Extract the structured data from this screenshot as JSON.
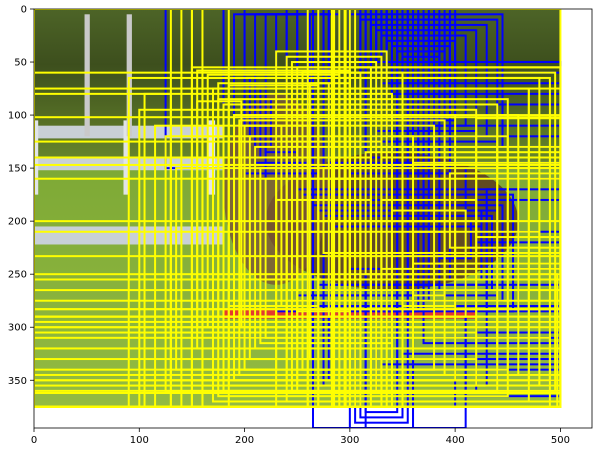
{
  "chart_data": {
    "type": "image-with-boxes",
    "xlim": [
      0,
      530
    ],
    "ylim": [
      395,
      0
    ],
    "image_extent": {
      "x": [
        0,
        500
      ],
      "y": [
        375,
        0
      ]
    },
    "x_ticks": [
      0,
      100,
      200,
      300,
      400,
      500
    ],
    "y_ticks": [
      0,
      50,
      100,
      150,
      200,
      250,
      300,
      350
    ],
    "x_tick_labels": [
      "0",
      "100",
      "200",
      "300",
      "400",
      "500"
    ],
    "y_tick_labels": [
      "0",
      "50",
      "100",
      "150",
      "200",
      "250",
      "300",
      "350"
    ],
    "colors": {
      "yellow": "#ffff00",
      "blue": "#0000ff",
      "grass_light": "#8fb53c",
      "grass_dark": "#5d7d25",
      "trees": "#3d4f1d",
      "fence": "#c8d0d6",
      "horse": "#5a3a1e",
      "jump_pole": "#e53a2e"
    },
    "boxes": {
      "yellow": [
        [
          0,
          0,
          500,
          375
        ],
        [
          0,
          75,
          500,
          375
        ],
        [
          0,
          102,
          500,
          360
        ],
        [
          0,
          147,
          500,
          350
        ],
        [
          0,
          283,
          500,
          375
        ],
        [
          0,
          290,
          500,
          362
        ],
        [
          0,
          300,
          500,
          355
        ],
        [
          0,
          310,
          490,
          350
        ],
        [
          0,
          320,
          500,
          345
        ],
        [
          0,
          233,
          500,
          375
        ],
        [
          0,
          250,
          497,
          375
        ],
        [
          140,
          0,
          185,
          375
        ],
        [
          150,
          55,
          500,
          375
        ],
        [
          160,
          65,
          490,
          375
        ],
        [
          170,
          75,
          470,
          370
        ],
        [
          175,
          85,
          450,
          365
        ],
        [
          180,
          90,
          440,
          360
        ],
        [
          185,
          95,
          420,
          355
        ],
        [
          190,
          100,
          400,
          350
        ],
        [
          195,
          105,
          390,
          345
        ],
        [
          200,
          110,
          380,
          340
        ],
        [
          205,
          120,
          360,
          330
        ],
        [
          210,
          130,
          350,
          320
        ],
        [
          215,
          150,
          340,
          315
        ],
        [
          220,
          160,
          330,
          310
        ],
        [
          230,
          180,
          320,
          300
        ],
        [
          240,
          200,
          310,
          290
        ],
        [
          250,
          210,
          300,
          285
        ],
        [
          155,
          58,
          300,
          320
        ],
        [
          165,
          62,
          290,
          300
        ],
        [
          175,
          70,
          280,
          290
        ],
        [
          185,
          72,
          270,
          280
        ],
        [
          90,
          65,
          300,
          375
        ],
        [
          100,
          95,
          270,
          375
        ],
        [
          115,
          110,
          260,
          375
        ],
        [
          125,
          120,
          250,
          360
        ],
        [
          130,
          140,
          240,
          350
        ],
        [
          135,
          150,
          230,
          340
        ],
        [
          260,
          0,
          285,
          375
        ],
        [
          270,
          0,
          300,
          375
        ],
        [
          290,
          55,
          500,
          370
        ],
        [
          300,
          60,
          495,
          360
        ],
        [
          310,
          65,
          480,
          355
        ],
        [
          320,
          75,
          470,
          350
        ],
        [
          330,
          100,
          460,
          345
        ],
        [
          340,
          120,
          450,
          340
        ],
        [
          350,
          130,
          440,
          320
        ],
        [
          305,
          130,
          500,
          255
        ],
        [
          315,
          135,
          500,
          250
        ],
        [
          330,
          140,
          500,
          245
        ],
        [
          360,
          145,
          500,
          240
        ],
        [
          275,
          150,
          500,
          230
        ],
        [
          395,
          155,
          500,
          225
        ],
        [
          280,
          160,
          500,
          200
        ],
        [
          420,
          103,
          500,
          215
        ],
        [
          440,
          100,
          500,
          150
        ],
        [
          0,
          200,
          500,
          283
        ],
        [
          0,
          210,
          480,
          290
        ],
        [
          0,
          290,
          440,
          340
        ],
        [
          0,
          305,
          420,
          330
        ],
        [
          230,
          40,
          335,
          375
        ],
        [
          240,
          45,
          330,
          370
        ],
        [
          245,
          50,
          325,
          360
        ],
        [
          250,
          55,
          320,
          355
        ],
        [
          255,
          60,
          310,
          340
        ],
        [
          262,
          70,
          300,
          330
        ],
        [
          283,
          0,
          290,
          375
        ],
        [
          285,
          0,
          295,
          375
        ],
        [
          296,
          0,
          305,
          375
        ],
        [
          150,
          0,
          160,
          375
        ],
        [
          130,
          0,
          150,
          375
        ],
        [
          105,
          80,
          130,
          375
        ],
        [
          155,
          87,
          197,
          300
        ],
        [
          180,
          90,
          250,
          305
        ],
        [
          190,
          100,
          240,
          290
        ],
        [
          200,
          110,
          235,
          280
        ],
        [
          330,
          180,
          420,
          300
        ],
        [
          340,
          190,
          410,
          290
        ],
        [
          350,
          200,
          400,
          280
        ],
        [
          360,
          210,
          390,
          270
        ],
        [
          0,
          255,
          500,
          300
        ],
        [
          0,
          265,
          500,
          295
        ],
        [
          0,
          275,
          500,
          290
        ],
        [
          0,
          60,
          350,
          375
        ],
        [
          0,
          80,
          340,
          375
        ],
        [
          0,
          125,
          330,
          375
        ],
        [
          0,
          140,
          320,
          375
        ],
        [
          0,
          160,
          310,
          375
        ]
      ],
      "blue": [
        [
          125,
          0,
          200,
          150
        ],
        [
          180,
          0,
          300,
          320
        ],
        [
          190,
          5,
          290,
          310
        ],
        [
          200,
          5,
          280,
          305
        ],
        [
          210,
          5,
          275,
          300
        ],
        [
          220,
          5,
          270,
          290
        ],
        [
          230,
          5,
          265,
          285
        ],
        [
          240,
          5,
          262,
          280
        ],
        [
          250,
          5,
          260,
          275
        ],
        [
          240,
          0,
          340,
          280
        ],
        [
          250,
          0,
          335,
          270
        ],
        [
          260,
          0,
          330,
          265
        ],
        [
          270,
          0,
          325,
          360
        ],
        [
          275,
          0,
          320,
          355
        ],
        [
          265,
          0,
          315,
          395
        ],
        [
          280,
          0,
          310,
          350
        ],
        [
          290,
          0,
          350,
          340
        ],
        [
          295,
          0,
          345,
          330
        ],
        [
          300,
          0,
          340,
          320
        ],
        [
          305,
          0,
          335,
          310
        ],
        [
          310,
          0,
          360,
          300
        ],
        [
          315,
          0,
          355,
          295
        ],
        [
          320,
          0,
          350,
          290
        ],
        [
          325,
          0,
          365,
          285
        ],
        [
          330,
          0,
          370,
          280
        ],
        [
          335,
          0,
          375,
          275
        ],
        [
          340,
          0,
          380,
          270
        ],
        [
          345,
          0,
          385,
          265
        ],
        [
          350,
          0,
          390,
          260
        ],
        [
          355,
          0,
          395,
          255
        ],
        [
          300,
          5,
          445,
          130
        ],
        [
          310,
          10,
          440,
          125
        ],
        [
          320,
          15,
          430,
          120
        ],
        [
          325,
          20,
          420,
          115
        ],
        [
          330,
          25,
          410,
          110
        ],
        [
          335,
          30,
          400,
          105
        ],
        [
          340,
          35,
          395,
          100
        ],
        [
          345,
          40,
          390,
          95
        ],
        [
          350,
          45,
          385,
          90
        ],
        [
          355,
          50,
          380,
          85
        ],
        [
          300,
          50,
          500,
          350
        ],
        [
          310,
          55,
          500,
          345
        ],
        [
          320,
          60,
          500,
          340
        ],
        [
          330,
          70,
          500,
          335
        ],
        [
          340,
          80,
          500,
          330
        ],
        [
          350,
          90,
          500,
          325
        ],
        [
          360,
          100,
          500,
          320
        ],
        [
          370,
          110,
          500,
          315
        ],
        [
          380,
          120,
          500,
          310
        ],
        [
          390,
          130,
          500,
          305
        ],
        [
          400,
          140,
          500,
          300
        ],
        [
          410,
          150,
          500,
          295
        ],
        [
          420,
          160,
          500,
          290
        ],
        [
          430,
          170,
          500,
          285
        ],
        [
          440,
          180,
          500,
          280
        ],
        [
          400,
          200,
          500,
          375
        ],
        [
          410,
          210,
          500,
          365
        ],
        [
          420,
          220,
          500,
          360
        ],
        [
          430,
          230,
          500,
          355
        ],
        [
          440,
          240,
          500,
          350
        ],
        [
          270,
          140,
          500,
          260
        ],
        [
          280,
          145,
          500,
          255
        ],
        [
          290,
          150,
          500,
          250
        ],
        [
          300,
          155,
          500,
          245
        ],
        [
          250,
          170,
          460,
          290
        ],
        [
          255,
          175,
          455,
          285
        ],
        [
          260,
          180,
          450,
          280
        ],
        [
          265,
          185,
          445,
          275
        ],
        [
          270,
          190,
          440,
          270
        ],
        [
          275,
          195,
          435,
          265
        ],
        [
          280,
          200,
          430,
          260
        ],
        [
          285,
          205,
          425,
          255
        ],
        [
          370,
          185,
          430,
          250
        ],
        [
          375,
          190,
          425,
          245
        ],
        [
          380,
          195,
          420,
          240
        ],
        [
          385,
          200,
          415,
          235
        ],
        [
          340,
          100,
          380,
          155
        ],
        [
          345,
          105,
          375,
          150
        ],
        [
          350,
          110,
          370,
          145
        ],
        [
          355,
          115,
          365,
          140
        ],
        [
          360,
          0,
          400,
          80
        ],
        [
          365,
          5,
          395,
          75
        ],
        [
          370,
          10,
          390,
          70
        ],
        [
          375,
          15,
          385,
          65
        ],
        [
          200,
          60,
          270,
          155
        ],
        [
          205,
          65,
          265,
          150
        ],
        [
          210,
          70,
          260,
          145
        ],
        [
          215,
          75,
          255,
          140
        ],
        [
          220,
          80,
          250,
          135
        ],
        [
          225,
          85,
          245,
          130
        ],
        [
          230,
          90,
          240,
          125
        ],
        [
          300,
          250,
          360,
          395
        ],
        [
          305,
          255,
          355,
          390
        ],
        [
          310,
          260,
          350,
          385
        ],
        [
          315,
          265,
          345,
          380
        ],
        [
          360,
          300,
          410,
          395
        ]
      ]
    }
  }
}
